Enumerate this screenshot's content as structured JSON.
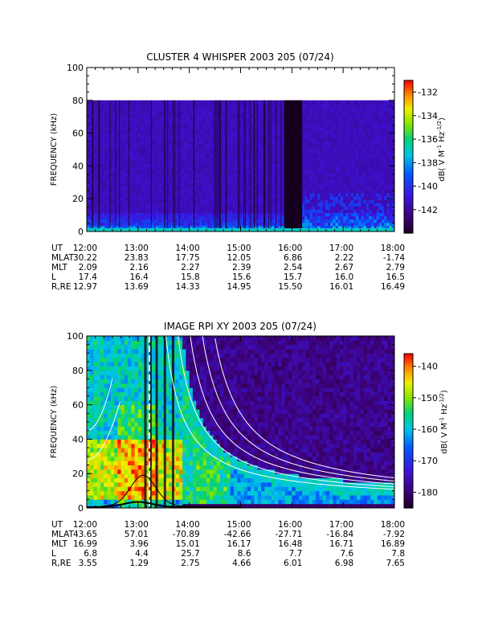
{
  "chart_data": [
    {
      "type": "heatmap",
      "title": "CLUSTER 4 WHISPER 2003 205 (07/24)",
      "ylabel": "FREQUENCY (kHz)",
      "y_ticks": [
        "0",
        "20",
        "40",
        "60",
        "80",
        "100"
      ],
      "ylim": [
        0,
        100
      ],
      "x_ticks": [
        "12:00",
        "13:00",
        "14:00",
        "15:00",
        "16:00",
        "17:00",
        "18:00"
      ],
      "colorbar": {
        "label": "dB( V M",
        "label_sup1": "-1",
        "label_mid": " Hz",
        "label_sup2": "-1/2",
        "label_end": ")",
        "ticks": [
          "-132",
          "-134",
          "-136",
          "-138",
          "-140",
          "-142"
        ],
        "tick_values": [
          -132,
          -134,
          -136,
          -138,
          -140,
          -142
        ],
        "range": [
          -144,
          -131
        ]
      },
      "data_top_khz": 80,
      "data_gap_hours": [
        15.85,
        16.2
      ],
      "ephemeris": {
        "rows": [
          {
            "label": "UT",
            "values": []
          },
          {
            "label": "MLAT",
            "values": [
              "30.22",
              "23.83",
              "17.75",
              "12.05",
              "6.86",
              "2.22",
              "-1.74"
            ]
          },
          {
            "label": "MLT",
            "values": [
              "2.09",
              "2.16",
              "2.27",
              "2.39",
              "2.54",
              "2.67",
              "2.79"
            ]
          },
          {
            "label": "L",
            "values": [
              "17.4",
              "16.4",
              "15.8",
              "15.6",
              "15.7",
              "16.0",
              "16.5"
            ]
          },
          {
            "label": "R,RE",
            "values": [
              "12.97",
              "13.69",
              "14.33",
              "14.95",
              "15.50",
              "16.01",
              "16.49"
            ]
          }
        ]
      }
    },
    {
      "type": "heatmap",
      "title": "IMAGE RPI XY 2003 205 (07/24)",
      "ylabel": "FREQUENCY (kHz)",
      "y_ticks": [
        "0",
        "20",
        "40",
        "60",
        "80",
        "100"
      ],
      "ylim": [
        0,
        100
      ],
      "x_ticks": [
        "12:00",
        "13:00",
        "14:00",
        "15:00",
        "16:00",
        "17:00",
        "18:00"
      ],
      "colorbar": {
        "label": "dB( V M",
        "label_sup1": "-1",
        "label_mid": " Hz",
        "label_sup2": "-1/2",
        "label_end": ")",
        "ticks": [
          "-140",
          "-150",
          "-160",
          "-170",
          "-180"
        ],
        "tick_values": [
          -140,
          -150,
          -160,
          -170,
          -180
        ],
        "range": [
          -185,
          -136
        ]
      },
      "ephemeris": {
        "rows": [
          {
            "label": "UT",
            "values": []
          },
          {
            "label": "MLAT",
            "values": [
              "43.65",
              "57.01",
              "-70.89",
              "-42.66",
              "-27.71",
              "-16.84",
              "-7.92"
            ]
          },
          {
            "label": "MLT",
            "values": [
              "16.99",
              "3.96",
              "15.01",
              "16.17",
              "16.48",
              "16.71",
              "16.89"
            ]
          },
          {
            "label": "L",
            "values": [
              "6.8",
              "4.4",
              "25.7",
              "8.6",
              "7.7",
              "7.6",
              "7.8"
            ]
          },
          {
            "label": "R,RE",
            "values": [
              "3.55",
              "1.29",
              "2.75",
              "4.66",
              "6.01",
              "6.98",
              "7.65"
            ]
          }
        ]
      }
    }
  ]
}
